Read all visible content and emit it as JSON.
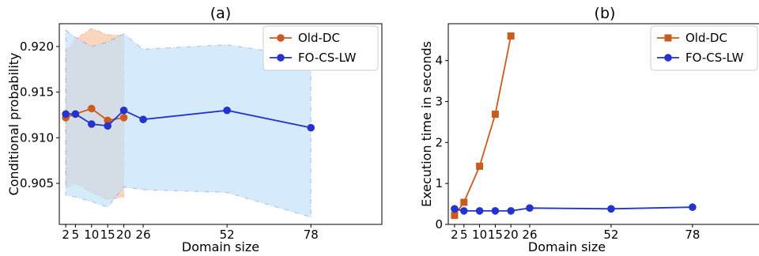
{
  "chart_data": [
    {
      "type": "line",
      "title": "(a)",
      "xlabel": "Domain size",
      "ylabel": "Conditional probability",
      "xlim": [
        0,
        100
      ],
      "ylim": [
        0.9005,
        0.9225
      ],
      "xticks": [
        2,
        5,
        10,
        15,
        20,
        26,
        52,
        78
      ],
      "yticks": [
        0.905,
        0.91,
        0.915,
        0.92
      ],
      "ytick_labels": [
        "0.905",
        "0.910",
        "0.915",
        "0.920"
      ],
      "legend_position": "top-right",
      "series": [
        {
          "name": "Old-DC",
          "color": "#cc5a1f",
          "marker": "circle",
          "x": [
            2,
            5,
            10,
            15,
            20
          ],
          "y": [
            0.9122,
            0.9126,
            0.9132,
            0.9119,
            0.9122
          ],
          "band_upper": [
            0.9195,
            0.9208,
            0.922,
            0.9213,
            0.9212
          ],
          "band_lower": [
            0.9045,
            0.905,
            0.904,
            0.9032,
            0.9035
          ],
          "band_color": "#f9c8a8"
        },
        {
          "name": "FO-CS-LW",
          "color": "#2333cc",
          "marker": "circle",
          "x": [
            2,
            5,
            10,
            15,
            20,
            26,
            52,
            78
          ],
          "y": [
            0.9126,
            0.9126,
            0.9115,
            0.9113,
            0.913,
            0.912,
            0.913,
            0.9111
          ],
          "band_upper": [
            0.9218,
            0.921,
            0.92,
            0.9205,
            0.9214,
            0.9197,
            0.9202,
            0.9188
          ],
          "band_lower": [
            0.9037,
            0.9035,
            0.903,
            0.9024,
            0.9046,
            0.9043,
            0.904,
            0.9013
          ],
          "band_color": "#bfe1fb"
        }
      ]
    },
    {
      "type": "line",
      "title": "(b)",
      "xlabel": "Domain size",
      "ylabel": "Execution time in seconds",
      "xlim": [
        0,
        100
      ],
      "ylim": [
        0,
        4.9
      ],
      "xticks": [
        2,
        5,
        10,
        15,
        20,
        26,
        52,
        78
      ],
      "yticks": [
        0,
        1,
        2,
        3,
        4
      ],
      "ytick_labels": [
        "0",
        "1",
        "2",
        "3",
        "4"
      ],
      "legend_position": "top-right",
      "series": [
        {
          "name": "Old-DC",
          "color": "#cc5a1f",
          "marker": "square",
          "x": [
            2,
            5,
            10,
            15,
            20
          ],
          "y": [
            0.22,
            0.54,
            1.42,
            2.69,
            4.6
          ]
        },
        {
          "name": "FO-CS-LW",
          "color": "#2333cc",
          "marker": "circle",
          "x": [
            2,
            5,
            10,
            15,
            20,
            26,
            52,
            78
          ],
          "y": [
            0.38,
            0.33,
            0.33,
            0.33,
            0.33,
            0.4,
            0.38,
            0.42
          ]
        }
      ]
    }
  ]
}
